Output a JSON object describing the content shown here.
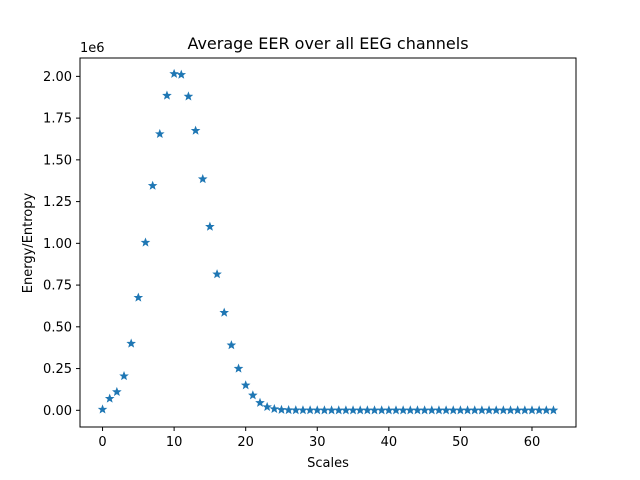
{
  "chart_data": {
    "type": "scatter",
    "title": "Average EER over all EEG channels",
    "xlabel": "Scales",
    "ylabel": "Energy/Entropy",
    "offset_text": "1e6",
    "marker": "star",
    "color": "#1f77b4",
    "grid": false,
    "xlim": [
      -3.15,
      66.15
    ],
    "ylim": [
      -100000,
      2110000
    ],
    "xticks": [
      0,
      10,
      20,
      30,
      40,
      50,
      60
    ],
    "yticks": [
      0,
      250000,
      500000,
      750000,
      1000000,
      1250000,
      1500000,
      1750000,
      2000000
    ],
    "ytick_labels": [
      "0.00",
      "0.25",
      "0.50",
      "0.75",
      "1.00",
      "1.25",
      "1.50",
      "1.75",
      "2.00"
    ],
    "series": [
      {
        "x": [
          0,
          1,
          2,
          3,
          4,
          5,
          6,
          7,
          8,
          9,
          10,
          11,
          12,
          13,
          14,
          15,
          16,
          17,
          18,
          19,
          20,
          21,
          22,
          23,
          24,
          25,
          26,
          27,
          28,
          29,
          30,
          31,
          32,
          33,
          34,
          35,
          36,
          37,
          38,
          39,
          40,
          41,
          42,
          43,
          44,
          45,
          46,
          47,
          48,
          49,
          50,
          51,
          52,
          53,
          54,
          55,
          56,
          57,
          58,
          59,
          60,
          61,
          62,
          63
        ],
        "y": [
          5000,
          70000,
          110000,
          205000,
          400000,
          675000,
          1005000,
          1345000,
          1655000,
          1885000,
          2015000,
          2010000,
          1880000,
          1675000,
          1385000,
          1100000,
          815000,
          585000,
          390000,
          250000,
          150000,
          90000,
          45000,
          20000,
          8000,
          3000,
          1500,
          800,
          500,
          400,
          300,
          200,
          200,
          150,
          150,
          100,
          100,
          100,
          100,
          100,
          100,
          100,
          100,
          100,
          100,
          100,
          100,
          100,
          100,
          100,
          100,
          100,
          100,
          100,
          100,
          100,
          100,
          100,
          100,
          100,
          100,
          100,
          100,
          100
        ]
      }
    ]
  }
}
